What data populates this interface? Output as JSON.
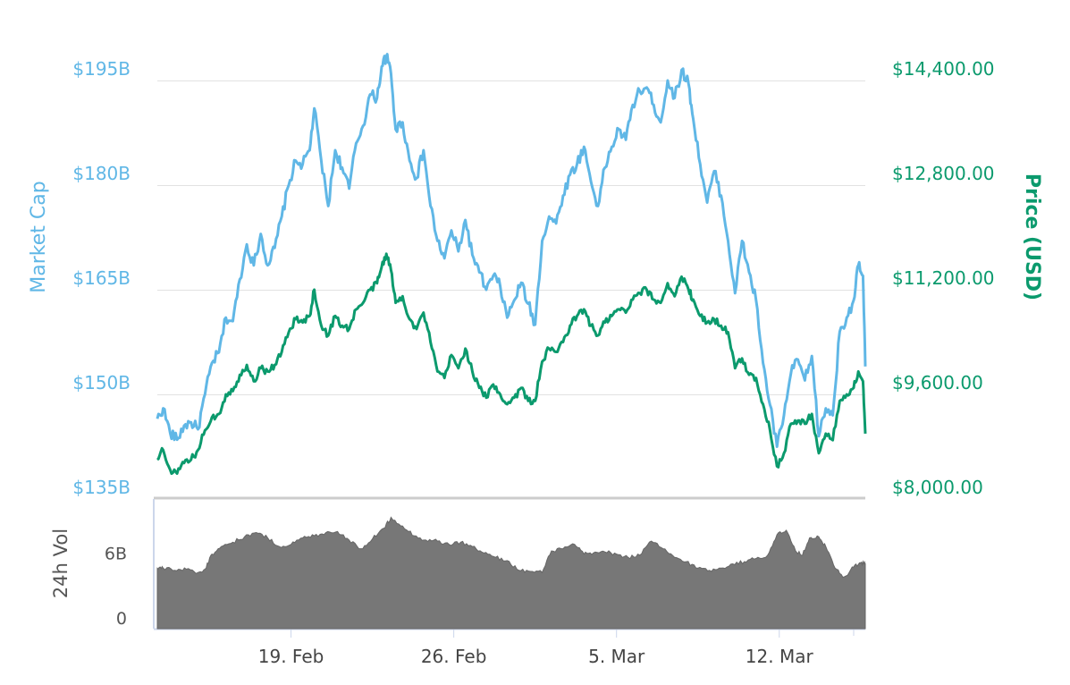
{
  "chart_data": {
    "type": "line",
    "left_axis": {
      "title": "Market Cap",
      "ticks": [
        {
          "value": 195,
          "label": "$195B"
        },
        {
          "value": 180,
          "label": "$180B"
        },
        {
          "value": 165,
          "label": "$165B"
        },
        {
          "value": 150,
          "label": "$150B"
        },
        {
          "value": 135,
          "label": "$135B"
        }
      ],
      "range": [
        135,
        195
      ],
      "color": "#60b7e6"
    },
    "right_axis": {
      "title": "Price (USD)",
      "ticks": [
        {
          "value": 14400,
          "label": "$14,400.00"
        },
        {
          "value": 12800,
          "label": "$12,800.00"
        },
        {
          "value": 11200,
          "label": "$11,200.00"
        },
        {
          "value": 9600,
          "label": "$9,600.00"
        },
        {
          "value": 8000,
          "label": "$8,000.00"
        }
      ],
      "range": [
        8000,
        14400
      ],
      "color": "#0b9a6d"
    },
    "volume_axis": {
      "title": "24h Vol",
      "ticks": [
        {
          "value": 6,
          "label": "6B"
        },
        {
          "value": 0,
          "label": "0"
        }
      ],
      "range": [
        0,
        12
      ]
    },
    "x_axis": {
      "range_days": [
        13.25,
        43.7
      ],
      "ticks": [
        {
          "day": 19,
          "label": "19. Feb"
        },
        {
          "day": 26,
          "label": "26. Feb"
        },
        {
          "day": 33,
          "label": "5. Mar"
        },
        {
          "day": 40,
          "label": "12. Mar"
        }
      ]
    },
    "grid": true,
    "series": [
      {
        "name": "Market Cap",
        "color": "#60b7e6",
        "points": [
          [
            13.25,
            146.5
          ],
          [
            13.5,
            148.0
          ],
          [
            13.8,
            144.5
          ],
          [
            14.1,
            143.5
          ],
          [
            14.4,
            145.5
          ],
          [
            14.7,
            146.0
          ],
          [
            15.0,
            145.0
          ],
          [
            15.3,
            150.0
          ],
          [
            15.6,
            154.5
          ],
          [
            15.9,
            156.0
          ],
          [
            16.2,
            161.0
          ],
          [
            16.5,
            160.5
          ],
          [
            16.8,
            166.5
          ],
          [
            17.1,
            171.5
          ],
          [
            17.4,
            168.5
          ],
          [
            17.7,
            173.0
          ],
          [
            18.0,
            168.5
          ],
          [
            18.3,
            171.0
          ],
          [
            18.6,
            175.5
          ],
          [
            18.9,
            180.0
          ],
          [
            19.2,
            183.5
          ],
          [
            19.5,
            183.0
          ],
          [
            19.8,
            185.0
          ],
          [
            20.0,
            191.0
          ],
          [
            20.3,
            183.5
          ],
          [
            20.6,
            177.0
          ],
          [
            20.9,
            185.0
          ],
          [
            21.2,
            182.5
          ],
          [
            21.5,
            179.5
          ],
          [
            21.8,
            186.0
          ],
          [
            22.1,
            188.5
          ],
          [
            22.4,
            193.0
          ],
          [
            22.7,
            192.5
          ],
          [
            22.9,
            197.0
          ],
          [
            23.1,
            198.5
          ],
          [
            23.3,
            196.0
          ],
          [
            23.5,
            188.0
          ],
          [
            23.8,
            189.0
          ],
          [
            24.1,
            183.5
          ],
          [
            24.4,
            181.0
          ],
          [
            24.7,
            185.0
          ],
          [
            25.0,
            177.0
          ],
          [
            25.3,
            172.0
          ],
          [
            25.6,
            169.5
          ],
          [
            25.9,
            173.5
          ],
          [
            26.2,
            170.5
          ],
          [
            26.5,
            175.0
          ],
          [
            26.8,
            170.0
          ],
          [
            27.1,
            167.5
          ],
          [
            27.4,
            165.0
          ],
          [
            27.7,
            167.0
          ],
          [
            28.0,
            165.5
          ],
          [
            28.3,
            161.0
          ],
          [
            28.6,
            163.5
          ],
          [
            28.9,
            166.0
          ],
          [
            29.2,
            163.0
          ],
          [
            29.5,
            160.0
          ],
          [
            29.8,
            172.0
          ],
          [
            30.1,
            175.5
          ],
          [
            30.4,
            174.5
          ],
          [
            30.7,
            178.5
          ],
          [
            31.0,
            181.5
          ],
          [
            31.3,
            183.0
          ],
          [
            31.6,
            185.5
          ],
          [
            31.9,
            180.5
          ],
          [
            32.2,
            177.0
          ],
          [
            32.5,
            182.5
          ],
          [
            32.8,
            185.5
          ],
          [
            33.1,
            188.0
          ],
          [
            33.4,
            186.5
          ],
          [
            33.7,
            191.5
          ],
          [
            34.0,
            193.5
          ],
          [
            34.3,
            194.0
          ],
          [
            34.6,
            191.5
          ],
          [
            34.9,
            189.0
          ],
          [
            35.2,
            195.0
          ],
          [
            35.5,
            192.5
          ],
          [
            35.8,
            196.5
          ],
          [
            36.1,
            194.5
          ],
          [
            36.3,
            189.5
          ],
          [
            36.6,
            183.0
          ],
          [
            36.9,
            177.5
          ],
          [
            37.2,
            182.0
          ],
          [
            37.5,
            178.5
          ],
          [
            37.8,
            172.0
          ],
          [
            38.1,
            164.5
          ],
          [
            38.4,
            172.0
          ],
          [
            38.7,
            167.5
          ],
          [
            39.0,
            163.5
          ],
          [
            39.3,
            154.5
          ],
          [
            39.6,
            148.5
          ],
          [
            39.9,
            142.5
          ],
          [
            40.2,
            147.0
          ],
          [
            40.5,
            153.0
          ],
          [
            40.8,
            155.0
          ],
          [
            41.1,
            152.0
          ],
          [
            41.4,
            155.5
          ],
          [
            41.7,
            144.0
          ],
          [
            42.0,
            148.0
          ],
          [
            42.3,
            147.0
          ],
          [
            42.6,
            159.0
          ],
          [
            42.9,
            161.0
          ],
          [
            43.2,
            163.5
          ],
          [
            43.4,
            168.5
          ],
          [
            43.6,
            167.0
          ],
          [
            43.7,
            154.0
          ]
        ]
      },
      {
        "name": "Price (USD)",
        "color": "#0b9a6d",
        "points": [
          [
            13.25,
            8600
          ],
          [
            13.5,
            8750
          ],
          [
            13.8,
            8450
          ],
          [
            14.1,
            8390
          ],
          [
            14.4,
            8550
          ],
          [
            14.7,
            8600
          ],
          [
            15.0,
            8750
          ],
          [
            15.3,
            9050
          ],
          [
            15.6,
            9250
          ],
          [
            15.9,
            9300
          ],
          [
            16.2,
            9600
          ],
          [
            16.5,
            9650
          ],
          [
            16.8,
            9900
          ],
          [
            17.1,
            10050
          ],
          [
            17.4,
            9800
          ],
          [
            17.7,
            10000
          ],
          [
            18.0,
            9950
          ],
          [
            18.3,
            10050
          ],
          [
            18.6,
            10250
          ],
          [
            18.9,
            10550
          ],
          [
            19.2,
            10750
          ],
          [
            19.5,
            10700
          ],
          [
            19.8,
            10800
          ],
          [
            20.0,
            11200
          ],
          [
            20.3,
            10650
          ],
          [
            20.6,
            10500
          ],
          [
            20.9,
            10800
          ],
          [
            21.2,
            10650
          ],
          [
            21.5,
            10600
          ],
          [
            21.8,
            10900
          ],
          [
            22.1,
            11000
          ],
          [
            22.4,
            11200
          ],
          [
            22.7,
            11300
          ],
          [
            22.9,
            11550
          ],
          [
            23.1,
            11750
          ],
          [
            23.3,
            11500
          ],
          [
            23.5,
            11000
          ],
          [
            23.8,
            11100
          ],
          [
            24.1,
            10750
          ],
          [
            24.4,
            10600
          ],
          [
            24.7,
            10850
          ],
          [
            25.0,
            10400
          ],
          [
            25.3,
            9950
          ],
          [
            25.6,
            9850
          ],
          [
            25.9,
            10200
          ],
          [
            26.2,
            10000
          ],
          [
            26.5,
            10300
          ],
          [
            26.8,
            9950
          ],
          [
            27.1,
            9700
          ],
          [
            27.4,
            9550
          ],
          [
            27.7,
            9750
          ],
          [
            28.0,
            9600
          ],
          [
            28.3,
            9450
          ],
          [
            28.6,
            9550
          ],
          [
            28.9,
            9700
          ],
          [
            29.2,
            9500
          ],
          [
            29.5,
            9500
          ],
          [
            29.8,
            10100
          ],
          [
            30.1,
            10300
          ],
          [
            30.4,
            10250
          ],
          [
            30.7,
            10400
          ],
          [
            31.0,
            10650
          ],
          [
            31.3,
            10800
          ],
          [
            31.6,
            10900
          ],
          [
            31.9,
            10650
          ],
          [
            32.2,
            10500
          ],
          [
            32.5,
            10700
          ],
          [
            32.8,
            10800
          ],
          [
            33.1,
            10900
          ],
          [
            33.4,
            10850
          ],
          [
            33.7,
            11050
          ],
          [
            34.0,
            11150
          ],
          [
            34.3,
            11200
          ],
          [
            34.6,
            11050
          ],
          [
            34.9,
            11000
          ],
          [
            35.2,
            11300
          ],
          [
            35.5,
            11100
          ],
          [
            35.8,
            11400
          ],
          [
            36.1,
            11200
          ],
          [
            36.3,
            11050
          ],
          [
            36.6,
            10800
          ],
          [
            36.9,
            10700
          ],
          [
            37.2,
            10750
          ],
          [
            37.5,
            10650
          ],
          [
            37.8,
            10550
          ],
          [
            38.1,
            10000
          ],
          [
            38.4,
            10150
          ],
          [
            38.7,
            9900
          ],
          [
            39.0,
            9850
          ],
          [
            39.3,
            9450
          ],
          [
            39.6,
            9050
          ],
          [
            39.9,
            8500
          ],
          [
            40.2,
            8700
          ],
          [
            40.5,
            9150
          ],
          [
            40.8,
            9200
          ],
          [
            41.1,
            9150
          ],
          [
            41.4,
            9300
          ],
          [
            41.7,
            8700
          ],
          [
            42.0,
            9000
          ],
          [
            42.3,
            8900
          ],
          [
            42.6,
            9500
          ],
          [
            42.9,
            9600
          ],
          [
            43.2,
            9700
          ],
          [
            43.4,
            9950
          ],
          [
            43.6,
            9800
          ],
          [
            43.7,
            9000
          ]
        ]
      },
      {
        "name": "24h Vol",
        "color": "#777777",
        "points": [
          [
            13.25,
            5.6
          ],
          [
            13.5,
            5.6
          ],
          [
            14.0,
            5.4
          ],
          [
            14.5,
            5.5
          ],
          [
            15.0,
            5.2
          ],
          [
            15.3,
            5.5
          ],
          [
            15.6,
            6.9
          ],
          [
            16.0,
            7.6
          ],
          [
            16.5,
            8.0
          ],
          [
            17.0,
            8.5
          ],
          [
            17.5,
            8.9
          ],
          [
            18.0,
            8.4
          ],
          [
            18.5,
            7.6
          ],
          [
            19.0,
            7.8
          ],
          [
            19.5,
            8.4
          ],
          [
            20.0,
            8.6
          ],
          [
            20.5,
            8.9
          ],
          [
            21.0,
            9.0
          ],
          [
            21.5,
            8.2
          ],
          [
            22.0,
            7.4
          ],
          [
            22.5,
            8.3
          ],
          [
            23.0,
            9.3
          ],
          [
            23.3,
            10.3
          ],
          [
            23.8,
            9.5
          ],
          [
            24.3,
            8.6
          ],
          [
            24.8,
            8.2
          ],
          [
            25.3,
            8.1
          ],
          [
            25.8,
            7.8
          ],
          [
            26.3,
            8.0
          ],
          [
            26.8,
            7.6
          ],
          [
            27.3,
            7.0
          ],
          [
            27.8,
            6.6
          ],
          [
            28.3,
            6.3
          ],
          [
            28.8,
            5.4
          ],
          [
            29.3,
            5.3
          ],
          [
            29.8,
            5.2
          ],
          [
            30.2,
            7.2
          ],
          [
            30.7,
            7.4
          ],
          [
            31.2,
            7.8
          ],
          [
            31.6,
            6.9
          ],
          [
            32.0,
            7.0
          ],
          [
            32.5,
            7.1
          ],
          [
            33.0,
            6.9
          ],
          [
            33.5,
            6.6
          ],
          [
            34.0,
            6.8
          ],
          [
            34.5,
            8.1
          ],
          [
            35.0,
            7.4
          ],
          [
            35.5,
            6.6
          ],
          [
            36.0,
            6.2
          ],
          [
            36.5,
            5.6
          ],
          [
            37.0,
            5.4
          ],
          [
            37.5,
            5.6
          ],
          [
            38.0,
            6.0
          ],
          [
            38.5,
            6.2
          ],
          [
            39.0,
            6.5
          ],
          [
            39.5,
            6.8
          ],
          [
            39.9,
            8.7
          ],
          [
            40.3,
            9.1
          ],
          [
            40.7,
            7.2
          ],
          [
            41.0,
            6.8
          ],
          [
            41.3,
            8.4
          ],
          [
            41.7,
            8.5
          ],
          [
            42.0,
            7.6
          ],
          [
            42.4,
            5.6
          ],
          [
            42.8,
            4.8
          ],
          [
            43.2,
            5.7
          ],
          [
            43.5,
            6.1
          ],
          [
            43.7,
            6.0
          ]
        ]
      }
    ]
  }
}
